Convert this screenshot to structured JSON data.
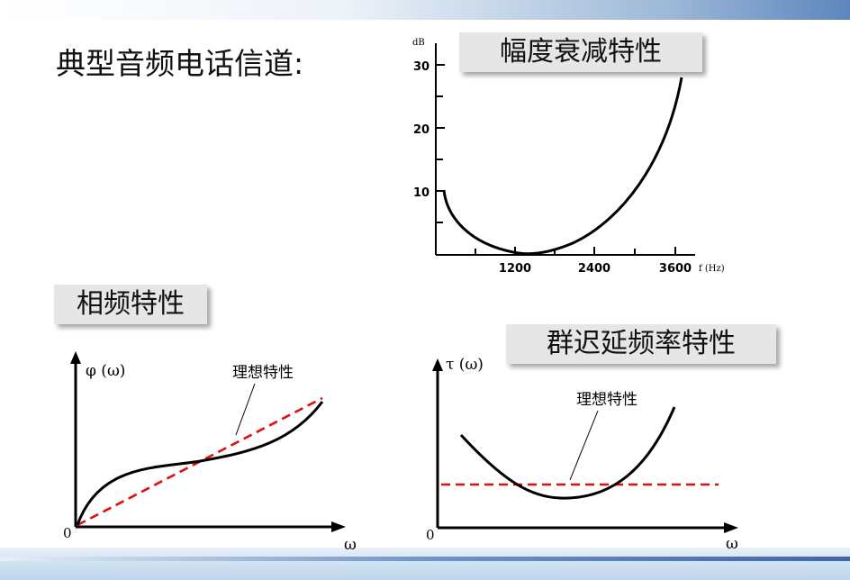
{
  "title": "典型音频电话信道:",
  "amplitude_panel": {
    "title": "幅度衰减特性",
    "y_unit": "dB",
    "y_ticks": [
      "10",
      "20",
      "30"
    ],
    "x_ticks": [
      "1200",
      "2400",
      "3600"
    ],
    "x_unit": "f (Hz)"
  },
  "phase_panel": {
    "title": "相频特性",
    "y_label": "φ (ω)",
    "x_label": "ω",
    "origin": "0",
    "ideal_label": "理想特性"
  },
  "group_delay_panel": {
    "title": "群迟延频率特性",
    "y_label": "τ (ω)",
    "x_label": "ω",
    "origin": "0",
    "ideal_label": "理想特性"
  },
  "colors": {
    "ideal_line": "#e01010",
    "title_box": "#e6e6e6",
    "accent_blue": "#3d68a8"
  }
}
